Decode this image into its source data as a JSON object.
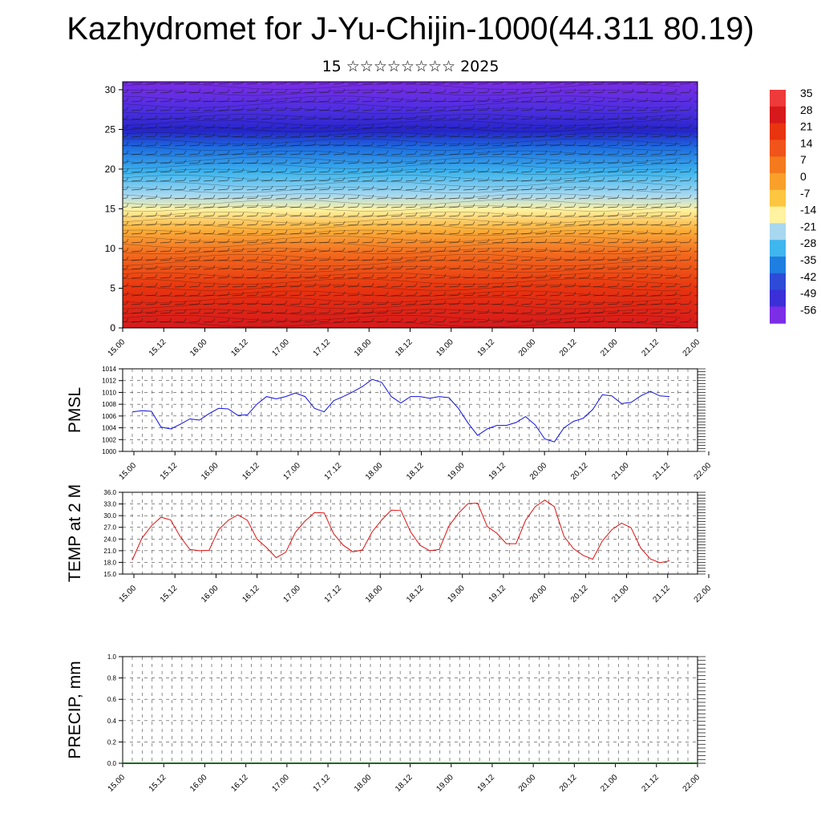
{
  "title": "Kazhydromet for J-Yu-Chijin-1000(44.311 80.19)",
  "subtitle": "15 ☆☆☆☆☆☆☆☆ 2025",
  "colorbar": {
    "labels": [
      "35",
      "28",
      "21",
      "14",
      "7",
      "0",
      "-7",
      "-14",
      "-21",
      "-28",
      "-35",
      "-42",
      "-49",
      "-56"
    ],
    "colors": [
      "#ee3a3a",
      "#d7191c",
      "#e8340f",
      "#f0541a",
      "#f47a1d",
      "#f8a02a",
      "#fcc640",
      "#fff2a0",
      "#a7d8f0",
      "#3fb6ee",
      "#1e7fe0",
      "#2d4bd6",
      "#3b2fd8",
      "#7c2de6"
    ]
  },
  "chart_data": [
    {
      "type": "heatmap",
      "name": "upper-air",
      "title": "",
      "xlabel": "",
      "ylabel": "",
      "ylim": [
        0,
        31
      ],
      "yticks": [
        "0",
        "5",
        "10",
        "15",
        "20",
        "25",
        "30"
      ],
      "xticks": [
        "15.00",
        "15.12",
        "16.00",
        "16.12",
        "17.00",
        "17.12",
        "18.00",
        "18.12",
        "19.00",
        "19.12",
        "20.00",
        "20.12",
        "21.00",
        "21.12",
        "22.00"
      ],
      "levels": [
        0,
        5,
        10,
        13,
        15,
        17,
        20,
        23,
        25,
        27,
        31
      ],
      "temperature_profile": [
        30,
        22,
        12,
        3,
        -10,
        -21,
        -32,
        -45,
        -55,
        -48,
        -56
      ],
      "overlay": "wind barbs"
    },
    {
      "type": "line",
      "name": "pmsl",
      "ylabel": "PMSL",
      "ylim": [
        1000,
        1014
      ],
      "yticks": [
        "1000",
        "1002",
        "1004",
        "1006",
        "1008",
        "1010",
        "1012",
        "1014"
      ],
      "xticks": [
        "15.00",
        "15.12",
        "16.00",
        "16.12",
        "17.00",
        "17.12",
        "18.00",
        "18.12",
        "19.00",
        "19.12",
        "20.00",
        "20.12",
        "21.00",
        "21.12",
        "22.00"
      ],
      "color": "#1010e0",
      "values": [
        1006.7,
        1006.9,
        1006.8,
        1004.1,
        1003.8,
        1004.6,
        1005.5,
        1005.3,
        1006.4,
        1007.3,
        1007.2,
        1006.1,
        1006.2,
        1008.0,
        1009.3,
        1008.9,
        1009.3,
        1009.9,
        1009.3,
        1007.3,
        1006.7,
        1008.6,
        1009.3,
        1010.1,
        1011.0,
        1012.2,
        1011.7,
        1009.3,
        1008.2,
        1009.3,
        1009.3,
        1009.0,
        1009.3,
        1009.1,
        1007.3,
        1004.8,
        1002.7,
        1003.8,
        1004.4,
        1004.4,
        1004.9,
        1005.9,
        1004.5,
        1002.1,
        1001.6,
        1004.0,
        1005.1,
        1005.6,
        1007.1,
        1009.6,
        1009.4,
        1008.1,
        1008.3,
        1009.4,
        1010.2,
        1009.4,
        1009.3
      ]
    },
    {
      "type": "line",
      "name": "temp-2m",
      "ylabel": "TEMP at 2 M",
      "ylim": [
        15,
        36
      ],
      "yticks": [
        "15.0",
        "18.0",
        "21.0",
        "24.0",
        "27.0",
        "30.0",
        "33.0",
        "36.0"
      ],
      "xticks": [
        "15.00",
        "15.12",
        "16.00",
        "16.12",
        "17.00",
        "17.12",
        "18.00",
        "18.12",
        "19.00",
        "19.12",
        "20.00",
        "20.12",
        "21.00",
        "21.12",
        "22.00"
      ],
      "color": "#e01010",
      "values": [
        18.6,
        24.2,
        27.4,
        29.6,
        28.9,
        24.6,
        21.3,
        21.0,
        21.1,
        26.4,
        28.8,
        30.2,
        28.8,
        24.0,
        21.8,
        19.2,
        20.6,
        25.7,
        28.6,
        30.8,
        30.7,
        25.3,
        22.4,
        20.7,
        21.2,
        25.8,
        28.9,
        31.4,
        31.3,
        25.9,
        22.4,
        21.0,
        21.3,
        27.3,
        30.6,
        33.1,
        33.2,
        27.2,
        25.5,
        22.8,
        22.8,
        28.8,
        32.3,
        34.0,
        32.3,
        24.7,
        21.5,
        19.8,
        18.8,
        23.5,
        26.4,
        28.1,
        26.9,
        21.7,
        18.9,
        17.9,
        18.4
      ]
    },
    {
      "type": "line",
      "name": "precip",
      "ylabel": "PRECIP, mm",
      "ylim": [
        0,
        1.0
      ],
      "yticks": [
        "0.0",
        "0.2",
        "0.4",
        "0.6",
        "0.8",
        "1.0"
      ],
      "xticks": [
        "15.00",
        "15.12",
        "16.00",
        "16.12",
        "17.00",
        "17.12",
        "18.00",
        "18.12",
        "19.00",
        "19.12",
        "20.00",
        "20.12",
        "21.00",
        "21.12",
        "22.00"
      ],
      "color": "#1a6b1a",
      "values": [
        0,
        0,
        0,
        0,
        0,
        0,
        0,
        0,
        0,
        0,
        0,
        0,
        0,
        0,
        0,
        0,
        0,
        0,
        0,
        0,
        0,
        0,
        0,
        0,
        0,
        0,
        0,
        0,
        0,
        0,
        0,
        0,
        0,
        0,
        0,
        0,
        0,
        0,
        0,
        0,
        0,
        0,
        0,
        0,
        0,
        0,
        0,
        0,
        0,
        0,
        0,
        0,
        0,
        0,
        0,
        0,
        0
      ]
    }
  ]
}
